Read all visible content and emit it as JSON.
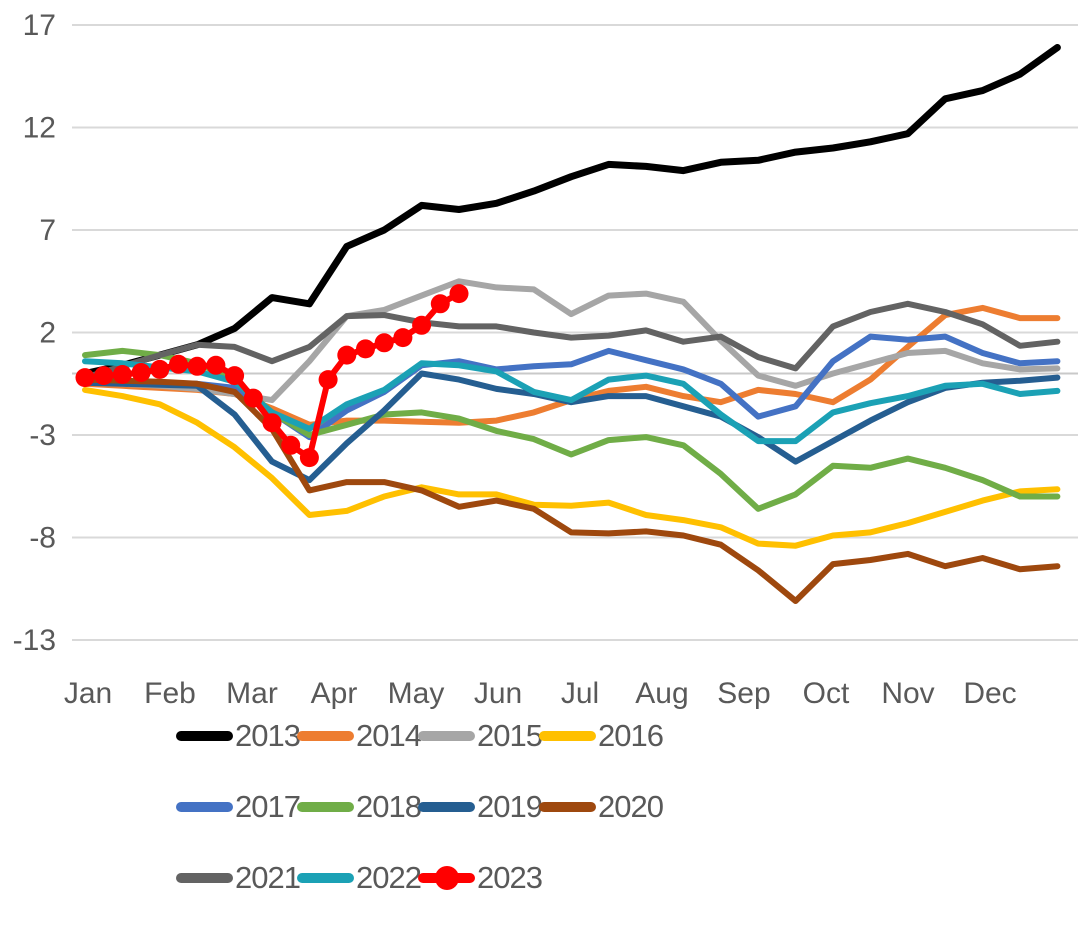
{
  "chart_data": {
    "type": "line",
    "title": "",
    "subtitle": "",
    "xlabel": "",
    "ylabel": "",
    "x_axis": {
      "months": [
        "Jan",
        "Feb",
        "Mar",
        "Apr",
        "May",
        "Jun",
        "Jul",
        "Aug",
        "Sep",
        "Oct",
        "Nov",
        "Dec"
      ],
      "unit": "weekly observations across one year"
    },
    "y_axis": {
      "ticks": [
        17,
        12,
        7,
        2,
        -3,
        -8,
        -13
      ],
      "min": -13,
      "max": 17,
      "gridlines": true,
      "zero_axis_line": true
    },
    "legend_position": "bottom",
    "week_grid": [
      0,
      2,
      4,
      6,
      8,
      10,
      12,
      14,
      16,
      18,
      20,
      22,
      24,
      26,
      28,
      30,
      32,
      34,
      36,
      38,
      40,
      42,
      44,
      46,
      48,
      50,
      52
    ],
    "series": [
      {
        "name": "2013",
        "color": "#000000",
        "line_width": 7,
        "marker": false,
        "values": [
          0.0,
          0.4,
          0.9,
          1.4,
          2.2,
          3.7,
          3.4,
          6.2,
          7.0,
          8.2,
          8.0,
          8.3,
          8.9,
          9.6,
          10.2,
          10.1,
          9.9,
          10.3,
          10.4,
          10.8,
          11.0,
          11.3,
          11.7,
          13.4,
          13.8,
          14.6,
          15.9
        ]
      },
      {
        "name": "2014",
        "color": "#ED7D31",
        "line_width": 6,
        "marker": false,
        "values": [
          -0.5,
          -0.6,
          -0.7,
          -0.8,
          -1.0,
          -1.7,
          -2.5,
          -2.3,
          -2.3,
          -2.35,
          -2.4,
          -2.3,
          -1.9,
          -1.3,
          -0.85,
          -0.65,
          -1.1,
          -1.4,
          -0.8,
          -1.0,
          -1.4,
          -0.3,
          1.3,
          2.85,
          3.2,
          2.7,
          2.7
        ]
      },
      {
        "name": "2015",
        "color": "#A6A6A6",
        "line_width": 6,
        "marker": false,
        "values": [
          -0.4,
          -0.5,
          -0.6,
          -0.75,
          -1.0,
          -1.3,
          0.6,
          2.8,
          3.1,
          3.8,
          4.5,
          4.2,
          4.1,
          2.9,
          3.8,
          3.9,
          3.5,
          1.6,
          -0.1,
          -0.6,
          0.0,
          0.5,
          1.0,
          1.1,
          0.5,
          0.2,
          0.25
        ]
      },
      {
        "name": "2016",
        "color": "#FFC000",
        "line_width": 6,
        "marker": false,
        "values": [
          -0.8,
          -1.1,
          -1.5,
          -2.4,
          -3.6,
          -5.1,
          -6.9,
          -6.7,
          -6.0,
          -5.55,
          -5.9,
          -5.9,
          -6.4,
          -6.45,
          -6.3,
          -6.9,
          -7.15,
          -7.5,
          -8.3,
          -8.4,
          -7.9,
          -7.75,
          -7.3,
          -6.75,
          -6.2,
          -5.75,
          -5.65
        ]
      },
      {
        "name": "2017",
        "color": "#4472C4",
        "line_width": 6,
        "marker": false,
        "values": [
          -0.3,
          -0.4,
          -0.45,
          -0.5,
          -0.7,
          -1.9,
          -3.1,
          -1.8,
          -0.9,
          0.4,
          0.6,
          0.2,
          0.35,
          0.45,
          1.1,
          0.65,
          0.2,
          -0.5,
          -2.1,
          -1.6,
          0.6,
          1.8,
          1.65,
          1.8,
          1.0,
          0.5,
          0.6
        ]
      },
      {
        "name": "2018",
        "color": "#70AD47",
        "line_width": 6,
        "marker": false,
        "values": [
          0.9,
          1.1,
          0.9,
          0.5,
          -0.3,
          -1.9,
          -3.0,
          -2.5,
          -2.0,
          -1.9,
          -2.2,
          -2.8,
          -3.2,
          -3.95,
          -3.25,
          -3.1,
          -3.5,
          -4.9,
          -6.6,
          -5.9,
          -4.5,
          -4.6,
          -4.15,
          -4.6,
          -5.2,
          -6.0,
          -6.0
        ]
      },
      {
        "name": "2019",
        "color": "#255E91",
        "line_width": 6,
        "marker": false,
        "values": [
          -0.45,
          -0.5,
          -0.55,
          -0.6,
          -2.0,
          -4.3,
          -5.2,
          -3.4,
          -1.8,
          0.0,
          -0.3,
          -0.75,
          -1.0,
          -1.4,
          -1.1,
          -1.1,
          -1.6,
          -2.1,
          -3.1,
          -4.3,
          -3.3,
          -2.3,
          -1.4,
          -0.7,
          -0.45,
          -0.35,
          -0.2
        ]
      },
      {
        "name": "2020",
        "color": "#9E480E",
        "line_width": 6,
        "marker": false,
        "values": [
          -0.3,
          -0.35,
          -0.4,
          -0.5,
          -0.9,
          -2.7,
          -5.7,
          -5.3,
          -5.3,
          -5.7,
          -6.5,
          -6.2,
          -6.6,
          -7.75,
          -7.8,
          -7.7,
          -7.9,
          -8.35,
          -9.6,
          -11.1,
          -9.3,
          -9.1,
          -8.8,
          -9.4,
          -9.0,
          -9.55,
          -9.4
        ]
      },
      {
        "name": "2021",
        "color": "#636363",
        "line_width": 6,
        "marker": false,
        "values": [
          -0.2,
          0.35,
          0.9,
          1.4,
          1.3,
          0.6,
          1.3,
          2.8,
          2.85,
          2.5,
          2.3,
          2.3,
          2.0,
          1.75,
          1.85,
          2.1,
          1.55,
          1.8,
          0.8,
          0.25,
          2.3,
          3.0,
          3.4,
          3.0,
          2.4,
          1.35,
          1.55
        ]
      },
      {
        "name": "2022",
        "color": "#1BA1B5",
        "line_width": 6,
        "marker": false,
        "values": [
          0.6,
          0.5,
          0.3,
          0.1,
          -0.4,
          -1.9,
          -2.7,
          -1.5,
          -0.8,
          0.5,
          0.4,
          0.1,
          -0.9,
          -1.3,
          -0.3,
          -0.1,
          -0.5,
          -2.0,
          -3.3,
          -3.3,
          -1.9,
          -1.45,
          -1.1,
          -0.6,
          -0.5,
          -1.0,
          -0.85
        ]
      },
      {
        "name": "2023",
        "color": "#FF0000",
        "line_width": 6,
        "marker": true,
        "weeks": [
          0,
          1,
          2,
          3,
          4,
          5,
          6,
          7,
          8,
          9,
          10,
          11,
          12,
          13,
          14,
          15,
          16,
          17,
          18,
          19,
          20
        ],
        "values": [
          -0.2,
          -0.1,
          -0.05,
          0.05,
          0.2,
          0.45,
          0.35,
          0.4,
          -0.1,
          -1.2,
          -2.4,
          -3.5,
          -4.1,
          -0.3,
          0.9,
          1.2,
          1.5,
          1.75,
          2.35,
          3.4,
          3.9
        ]
      }
    ],
    "legend_rows": [
      [
        "2013",
        "2014",
        "2015",
        "2016"
      ],
      [
        "2017",
        "2018",
        "2019",
        "2020"
      ],
      [
        "2021",
        "2022",
        "2023"
      ]
    ],
    "colors": {
      "gridline": "#D9D9D9",
      "zero_line": "#C9C9C9",
      "axis_text": "#595959",
      "background": "#FFFFFF"
    }
  }
}
